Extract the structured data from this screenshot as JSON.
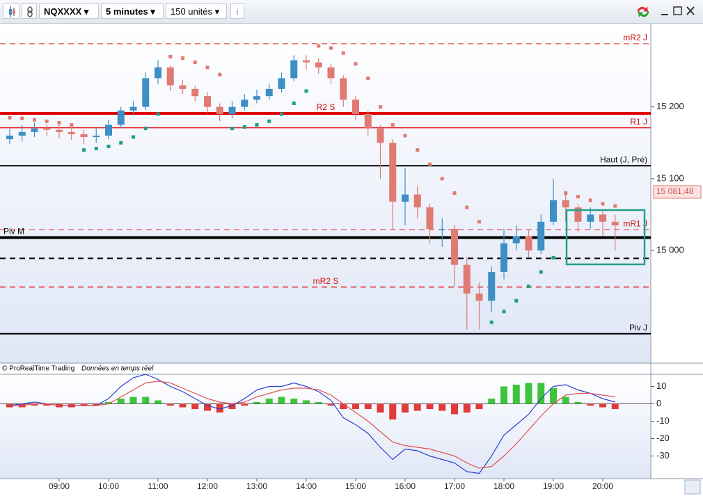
{
  "toolbar": {
    "symbol": "NQXXXX",
    "timeframe": "5 minutes",
    "units": "150 unités"
  },
  "footer": {
    "source": "© ProRealTime Trading",
    "note": "Données en temps réel"
  },
  "chart_data": [
    {
      "type": "candlestick",
      "categories": [
        null,
        null,
        null,
        null,
        "09:00",
        null,
        null,
        null,
        "10:00",
        null,
        null,
        null,
        "11:00",
        null,
        null,
        null,
        "12:00",
        null,
        null,
        null,
        "13:00",
        null,
        null,
        null,
        "14:00",
        null,
        null,
        null,
        "15:00",
        null,
        null,
        null,
        "16:00",
        null,
        null,
        null,
        "17:00",
        null,
        null,
        null,
        "18:00",
        null,
        null,
        null,
        "19:00",
        null,
        null,
        null,
        "20:00",
        null
      ],
      "open": [
        15155,
        15160,
        15165,
        15170,
        15168,
        15165,
        15162,
        15158,
        15160,
        15175,
        15195,
        15200,
        15240,
        15255,
        15230,
        15225,
        15215,
        15200,
        15190,
        15200,
        15210,
        15215,
        15225,
        15240,
        15265,
        15262,
        15255,
        15240,
        15210,
        15190,
        15170,
        15150,
        15068,
        15078,
        15060,
        15030,
        15030,
        14980,
        14940,
        14930,
        14970,
        15010,
        15020,
        15000,
        15040,
        15070,
        15060,
        15040,
        15050,
        15040
      ],
      "high": [
        15170,
        15175,
        15178,
        15176,
        15175,
        15172,
        15168,
        15170,
        15182,
        15200,
        15208,
        15248,
        15265,
        15258,
        15238,
        15230,
        15220,
        15205,
        15208,
        15218,
        15224,
        15232,
        15248,
        15272,
        15272,
        15268,
        15260,
        15244,
        15215,
        15195,
        15175,
        15155,
        15115,
        15090,
        15065,
        15045,
        15035,
        14990,
        14955,
        14978,
        15030,
        15035,
        15028,
        15050,
        15100,
        15080,
        15065,
        15060,
        15058,
        15050
      ],
      "low": [
        15148,
        15152,
        15158,
        15160,
        15156,
        15154,
        15148,
        15150,
        15155,
        15170,
        15188,
        15196,
        15232,
        15222,
        15218,
        15208,
        15192,
        15180,
        15184,
        15195,
        15205,
        15210,
        15220,
        15236,
        15252,
        15246,
        15232,
        15200,
        15182,
        15160,
        15100,
        15030,
        15035,
        15045,
        15010,
        15005,
        14950,
        14890,
        14890,
        14915,
        14960,
        15000,
        14990,
        14995,
        15035,
        15040,
        15025,
        15030,
        15020,
        15000
      ],
      "close": [
        15160,
        15165,
        15170,
        15168,
        15165,
        15162,
        15158,
        15160,
        15175,
        15195,
        15200,
        15240,
        15255,
        15230,
        15225,
        15215,
        15200,
        15190,
        15200,
        15210,
        15215,
        15225,
        15240,
        15265,
        15262,
        15255,
        15240,
        15210,
        15190,
        15170,
        15150,
        15068,
        15078,
        15060,
        15030,
        15030,
        14980,
        14940,
        14930,
        14970,
        15010,
        15020,
        15000,
        15040,
        15070,
        15060,
        15040,
        15050,
        15040,
        15035
      ],
      "sar": [
        15185,
        15184,
        15182,
        15180,
        15178,
        15175,
        15140,
        15142,
        15145,
        15150,
        15158,
        15170,
        15190,
        15270,
        15268,
        15262,
        15255,
        15245,
        15170,
        15172,
        15175,
        15180,
        15190,
        15205,
        15222,
        15285,
        15282,
        15275,
        15260,
        15240,
        15200,
        15175,
        15160,
        15140,
        15120,
        15100,
        15080,
        15060,
        15040,
        14900,
        14915,
        14930,
        14950,
        14970,
        14990,
        15080,
        15075,
        15070,
        15065,
        15062
      ],
      "up_color": "#3d8fc4",
      "down_color": "#e07a72",
      "sar_up_color": "#1e9e8a",
      "sar_down_color": "#e07a72",
      "ylim": [
        14845,
        15315
      ],
      "yticks": [
        {
          "value": 15000,
          "label": "15 000"
        },
        {
          "value": 15100,
          "label": "15 100"
        },
        {
          "value": 15200,
          "label": "15 200"
        }
      ],
      "levels": [
        {
          "label": "mR2 J",
          "value": 15288,
          "color": "#e02020",
          "dash": true,
          "width": 1,
          "label_pos": "right"
        },
        {
          "label": "R2 S",
          "value": 15191,
          "color": "#e00000",
          "dash": false,
          "width": 4,
          "label_pos": "center"
        },
        {
          "label": "R1 J",
          "value": 15171,
          "color": "#e02020",
          "dash": false,
          "width": 1.5,
          "label_pos": "right"
        },
        {
          "label": "Haut (J, Pré)",
          "value": 15118,
          "color": "#000000",
          "dash": false,
          "width": 2,
          "label_pos": "right"
        },
        {
          "label": "mR1 J",
          "value": 15029,
          "color": "#e02020",
          "dash": true,
          "width": 1,
          "label_pos": "right"
        },
        {
          "label": "Piv M",
          "value": 15018,
          "color": "#000000",
          "dash": false,
          "width": 4,
          "label_pos": "left"
        },
        {
          "value": 14989,
          "color": "#000000",
          "dash": true,
          "width": 2
        },
        {
          "label": "mR2 S",
          "value": 14949,
          "color": "#e02020",
          "dash": true,
          "width": 1.5,
          "label_pos": "center"
        },
        {
          "label": "Piv J",
          "value": 14884,
          "color": "#000000",
          "dash": false,
          "width": 2,
          "label_pos": "right"
        }
      ],
      "last_price": {
        "value": 15081.48,
        "label": "15 081,48"
      }
    },
    {
      "type": "macd",
      "histogram": [
        -2,
        -2,
        -1,
        -1,
        -2,
        -2,
        -1,
        -1,
        1,
        3,
        4,
        4,
        2,
        -1,
        -2,
        -3,
        -4,
        -5,
        -3,
        -1,
        1,
        3,
        4,
        3,
        2,
        1,
        -1,
        -3,
        -3,
        -3,
        -5,
        -9,
        -5,
        -4,
        -3,
        -4,
        -6,
        -5,
        -3,
        3,
        10,
        11,
        12,
        12,
        9,
        4,
        1,
        -1,
        -2,
        -3
      ],
      "macd": [
        -1,
        0,
        1,
        0,
        -1,
        -1,
        -1,
        -1,
        3,
        10,
        15,
        17,
        14,
        10,
        7,
        3,
        -1,
        -3,
        -1,
        3,
        8,
        10,
        10,
        12,
        10,
        7,
        2,
        -8,
        -12,
        -17,
        -25,
        -32,
        -26,
        -27,
        -30,
        -32,
        -34,
        -39,
        -40,
        -30,
        -18,
        -12,
        -6,
        3,
        10,
        11,
        8,
        6,
        3,
        1
      ],
      "signal": [
        -1,
        -1,
        0,
        0,
        -1,
        -1,
        -1,
        -1,
        0,
        4,
        8,
        12,
        13,
        12,
        9,
        6,
        3,
        1,
        0,
        1,
        4,
        6,
        8,
        9,
        9,
        8,
        5,
        0,
        -5,
        -10,
        -16,
        -22,
        -24,
        -25,
        -26,
        -28,
        -30,
        -34,
        -37,
        -36,
        -30,
        -23,
        -15,
        -7,
        0,
        5,
        6,
        6,
        5,
        4
      ],
      "pos_color": "#3cc43c",
      "neg_color": "#e03a3a",
      "macd_color": "#2a3fd0",
      "signal_color": "#e05050",
      "ylim": [
        -43,
        17
      ],
      "yticks": [
        10,
        0,
        -10,
        -20,
        -30
      ]
    }
  ]
}
